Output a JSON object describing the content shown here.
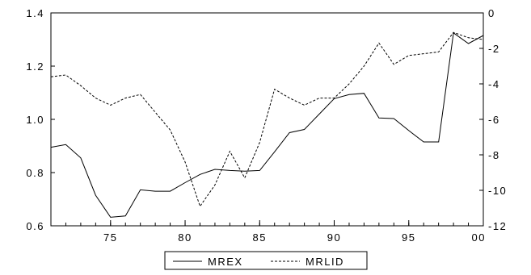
{
  "chart_data": {
    "type": "line",
    "title": "",
    "xlabel": "",
    "ylabel": "",
    "x": [
      1971,
      1972,
      1973,
      1974,
      1975,
      1976,
      1977,
      1978,
      1979,
      1980,
      1981,
      1982,
      1983,
      1984,
      1985,
      1986,
      1987,
      1988,
      1989,
      1990,
      1991,
      1992,
      1993,
      1994,
      1995,
      1996,
      1997,
      1998,
      1999,
      2000
    ],
    "x_ticks": [
      1975,
      1980,
      1985,
      1990,
      1995,
      2000
    ],
    "x_tick_labels": [
      "75",
      "80",
      "85",
      "90",
      "95",
      "00"
    ],
    "xlim": [
      1971,
      2000
    ],
    "y_left": {
      "range": [
        0.6,
        1.4
      ],
      "ticks": [
        0.6,
        0.8,
        1.0,
        1.2,
        1.4
      ],
      "tick_labels": [
        "0.6",
        "0.8",
        "1.0",
        "1.2",
        "1.4"
      ]
    },
    "y_right": {
      "range": [
        -12,
        0
      ],
      "ticks": [
        -12,
        -10,
        -8,
        -6,
        -4,
        -2,
        0
      ],
      "tick_labels": [
        "-12",
        "-10",
        "-8",
        "-6",
        "-4",
        "-2",
        "0"
      ]
    },
    "grid": false,
    "legend": "bottom-center",
    "series": [
      {
        "name": "MREX",
        "axis": "left",
        "style": "solid",
        "values": [
          0.895,
          0.905,
          0.855,
          0.715,
          0.632,
          0.637,
          0.735,
          0.73,
          0.73,
          0.762,
          0.793,
          0.812,
          0.808,
          0.805,
          0.808,
          0.878,
          0.95,
          0.962,
          1.02,
          1.078,
          1.093,
          1.098,
          1.005,
          1.003,
          0.958,
          0.915,
          0.915,
          1.325,
          1.285,
          1.315
        ]
      },
      {
        "name": "MRLID",
        "axis": "right",
        "style": "dashed",
        "values": [
          -3.6,
          -3.5,
          -4.1,
          -4.8,
          -5.2,
          -4.8,
          -4.6,
          -5.6,
          -6.6,
          -8.4,
          -10.9,
          -9.7,
          -7.8,
          -9.3,
          -7.3,
          -4.3,
          -4.8,
          -5.2,
          -4.8,
          -4.8,
          -4.0,
          -3.0,
          -1.7,
          -2.9,
          -2.4,
          -2.3,
          -2.2,
          -1.1,
          -1.4,
          -1.5
        ]
      }
    ]
  }
}
